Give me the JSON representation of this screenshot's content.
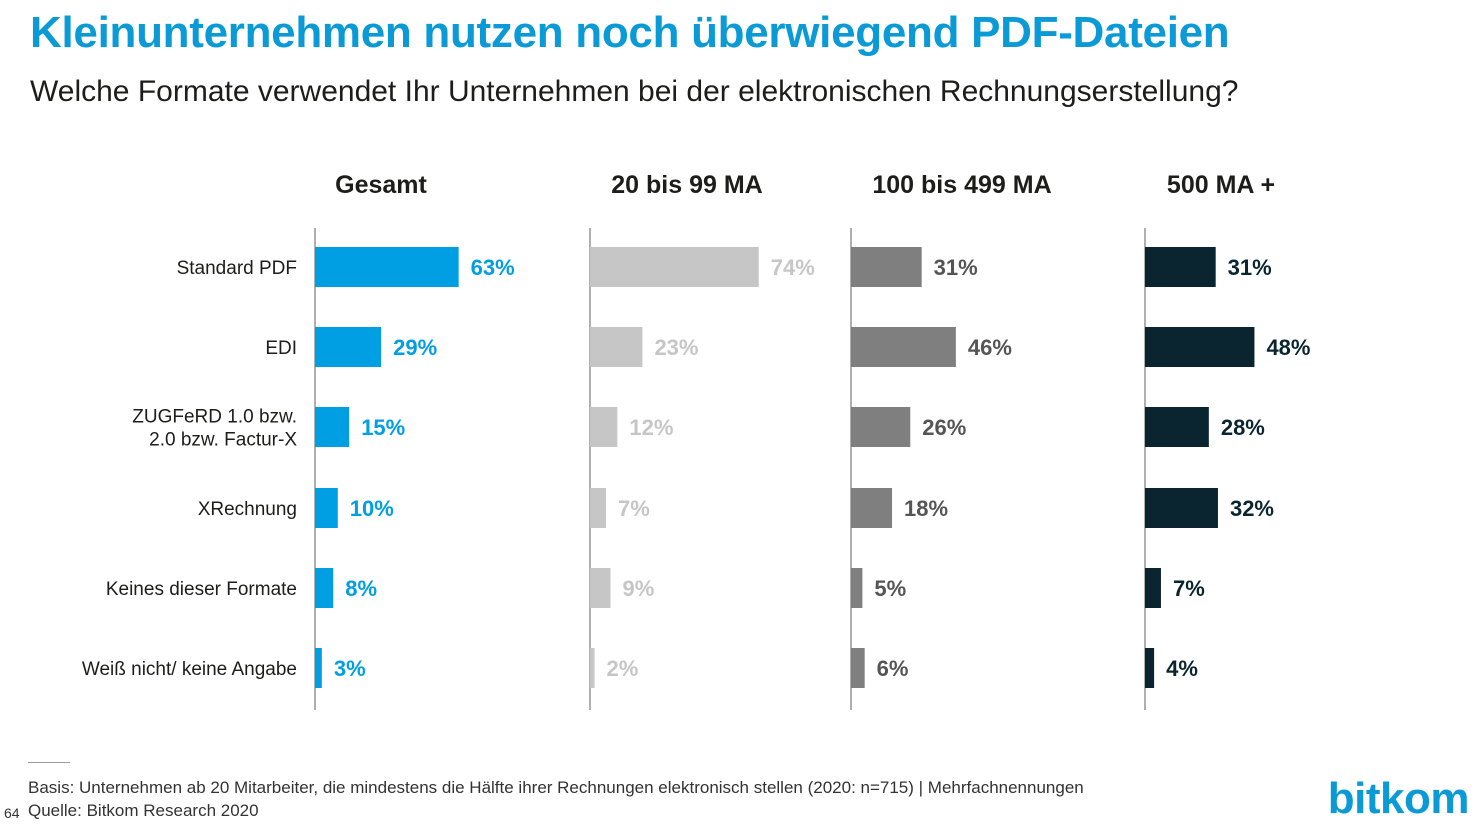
{
  "title": "Kleinunternehmen nutzen noch überwiegend PDF-Dateien",
  "subtitle": "Welche Formate verwendet Ihr Unternehmen bei der elektronischen Rechnungserstellung?",
  "chart_data": {
    "type": "bar",
    "orientation": "horizontal",
    "value_suffix": "%",
    "categories": [
      [
        "Standard PDF"
      ],
      [
        "EDI"
      ],
      [
        "ZUGFeRD 1.0 bzw.",
        "2.0 bzw. Factur-X"
      ],
      [
        "XRechnung"
      ],
      [
        "Keines dieser Formate"
      ],
      [
        "Weiß nicht/ keine Angabe"
      ]
    ],
    "series": [
      {
        "name": "Gesamt",
        "values": [
          63,
          29,
          15,
          10,
          8,
          3
        ],
        "color": "#009ee3"
      },
      {
        "name": "20 bis 99 MA",
        "values": [
          74,
          23,
          12,
          7,
          9,
          2
        ],
        "color": "#c6c6c6",
        "label_color": "#c6c6c6"
      },
      {
        "name": "100 bis 499 MA",
        "values": [
          31,
          46,
          26,
          18,
          5,
          6
        ],
        "color": "#7f7f7f",
        "label_color": "#555555"
      },
      {
        "name": "500 MA +",
        "values": [
          31,
          48,
          28,
          32,
          7,
          4
        ],
        "color": "#0b2530",
        "label_color": "#0b2530"
      }
    ]
  },
  "footer": {
    "basis": "Basis: Unternehmen ab 20 Mitarbeiter, die mindestens die Hälfte ihrer Rechnungen elektronisch stellen (2020: n=715) | Mehrfachnennungen",
    "source": "Quelle: Bitkom Research 2020",
    "page_number": "64"
  },
  "logo": {
    "text_bit": "bit",
    "text_kom": "kom"
  }
}
